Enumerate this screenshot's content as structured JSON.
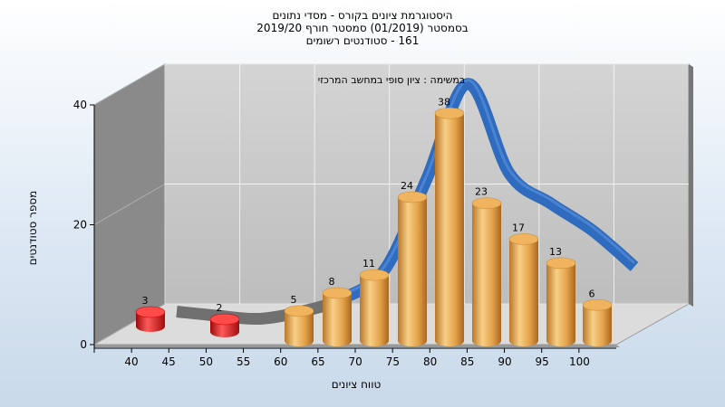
{
  "title_lines": [
    "היסטוגרמת ציונים בקורס - מסדי נתונים",
    "בסמסטר  (01/2019)  סמסטר חורף 2019/20",
    "161 - סטודנטים רשומים"
  ],
  "chart_data": {
    "type": "bar",
    "annotation": "במשימה : ציון סופי במחשב המרכזי",
    "ylabel": "מספר סטודנטים",
    "xlabel": "טווח ציונים",
    "ylim": [
      0,
      40
    ],
    "yticks": [
      0,
      20,
      40
    ],
    "xticks": [
      "40",
      "45",
      "50",
      "55",
      "60",
      "65",
      "70",
      "75",
      "80",
      "85",
      "90",
      "95",
      "100"
    ],
    "categories": [
      "40-45",
      "50-55",
      "60-65",
      "65-70",
      "70-75",
      "75-80",
      "80-85",
      "85-90",
      "90-95",
      "95-100",
      "100"
    ],
    "values": [
      3,
      2,
      5,
      8,
      11,
      24,
      38,
      23,
      17,
      13,
      6
    ],
    "curve": [
      4,
      3.3,
      2.8,
      4,
      6.2,
      11,
      26,
      42,
      27,
      22,
      17.5,
      11.5
    ],
    "grid": true,
    "colors": {
      "low_bar": "#d61a1a",
      "bar": "#e8a54a",
      "curve": "#2f6bbf",
      "curve_back": "#707070",
      "wall": "#c4c4c4",
      "side_wall": "#8a8a8a",
      "floor": "#dcdcdc"
    }
  }
}
